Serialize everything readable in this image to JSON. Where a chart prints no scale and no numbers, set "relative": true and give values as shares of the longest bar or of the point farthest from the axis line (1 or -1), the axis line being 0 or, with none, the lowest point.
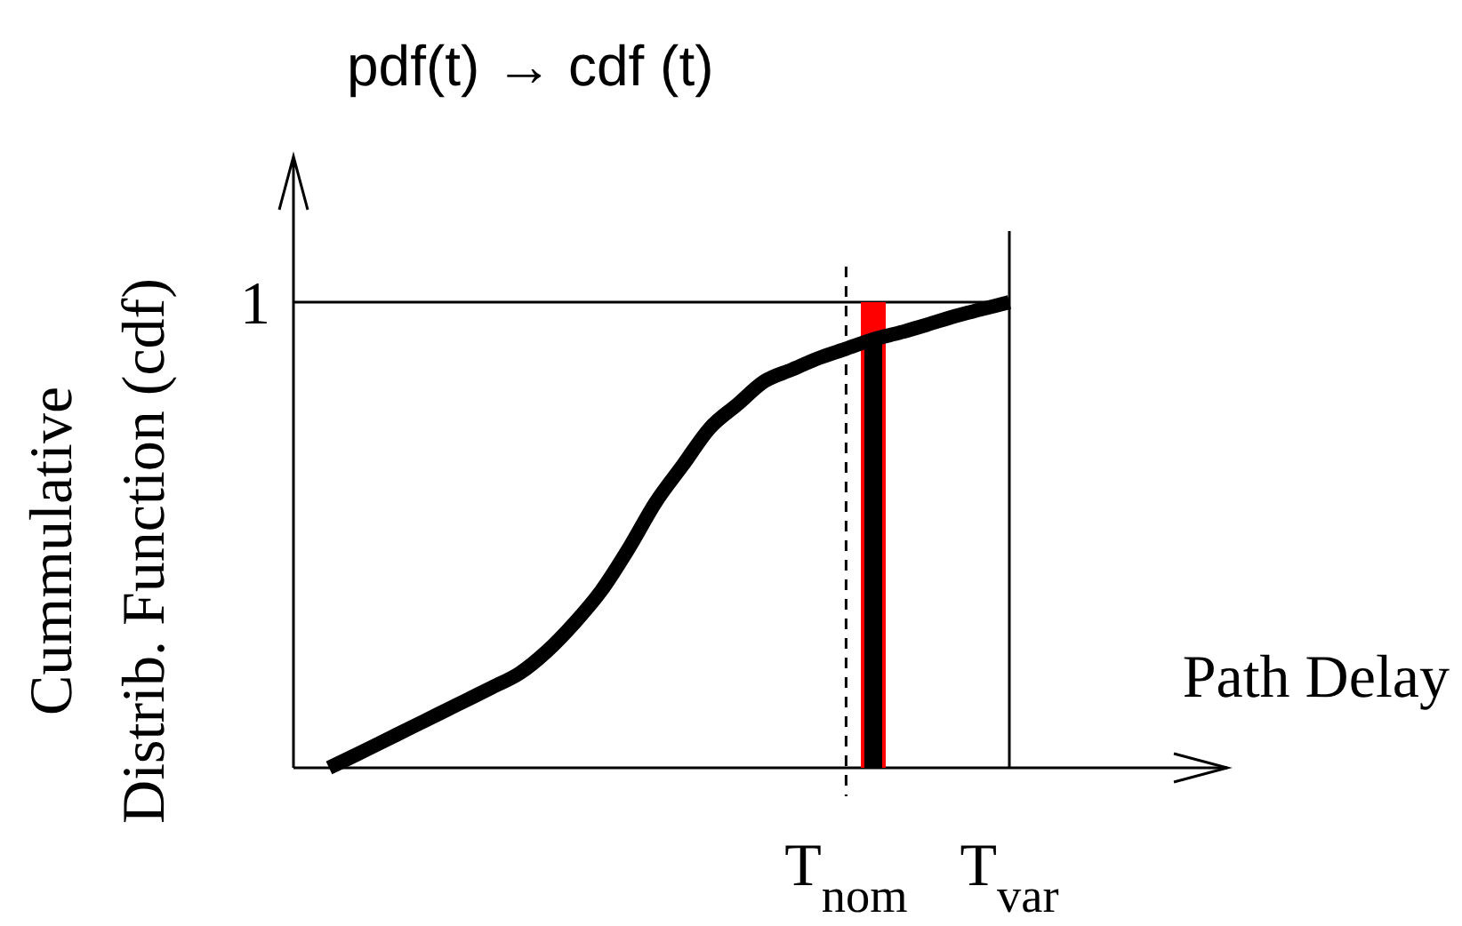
{
  "chart_data": {
    "type": "line",
    "title": "pdf(t) → cdf (t)",
    "xlabel": "Path Delay",
    "ylabel": "Cummulative Distrib. Function (cdf)",
    "relative": true,
    "categories": [
      null,
      null,
      null,
      null,
      null,
      null,
      null,
      null,
      null,
      null,
      null,
      null,
      null,
      null,
      null,
      null,
      null,
      null,
      null,
      "T$_{nom}$",
      null,
      null,
      null,
      null,
      null,
      "T$_{var}$"
    ],
    "series": [
      {
        "color": "#000000",
        "values": [
          0,
          0.028,
          0.057,
          0.086,
          0.115,
          0.144,
          0.173,
          0.203,
          0.25,
          0.31,
          0.38,
          0.47,
          0.57,
          0.65,
          0.73,
          0.78,
          0.83,
          0.855,
          0.88,
          0.9,
          0.92,
          0.935,
          0.952,
          0.97,
          0.985,
          1.0
        ]
      },
      {
        "type": "bar",
        "color": "#ff0000",
        "values": [
          null,
          null,
          null,
          null,
          null,
          null,
          null,
          null,
          null,
          null,
          null,
          null,
          null,
          null,
          null,
          null,
          null,
          null,
          null,
          null,
          1.0,
          null,
          null,
          null,
          null,
          null
        ]
      },
      {
        "type": "bar",
        "color": "#000000",
        "values": [
          null,
          null,
          null,
          null,
          null,
          null,
          null,
          null,
          null,
          null,
          null,
          null,
          null,
          null,
          null,
          null,
          null,
          null,
          null,
          null,
          0.92,
          null,
          null,
          null,
          null,
          null
        ]
      }
    ],
    "ref_lines": [
      {
        "axis": "y",
        "value": 1,
        "label": "1"
      },
      {
        "axis": "x",
        "value": "T$_{nom}$",
        "line_style": "dashed"
      },
      {
        "axis": "x",
        "value": "T$_{var}$"
      }
    ],
    "marker": "none",
    "line_style": "solid"
  }
}
